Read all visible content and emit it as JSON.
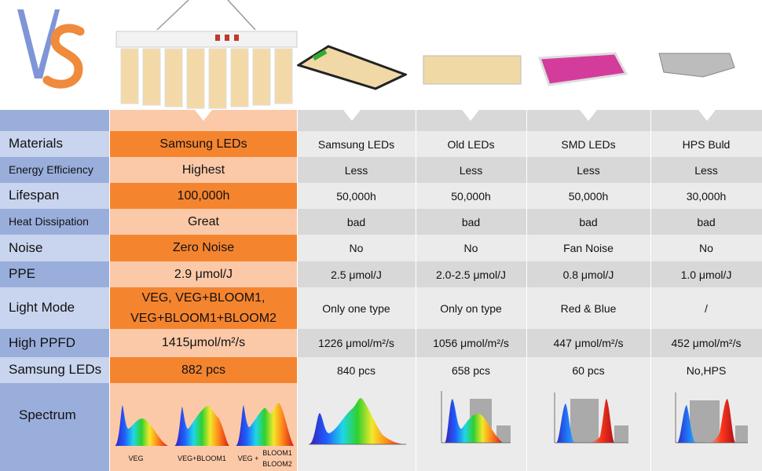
{
  "brand": {
    "logo_letters": "VS"
  },
  "colors": {
    "featured_dark": "#f5842f",
    "featured_light": "#fbc9a8",
    "label_dark": "#9aaedc",
    "label_light": "#c9d5ee",
    "row_light": "#ebebeb",
    "row_dark": "#d8d8d8"
  },
  "rows": [
    {
      "label": "Materials",
      "values": [
        "Samsung LEDs",
        "Samsung LEDs",
        "Old LEDs",
        "SMD LEDs",
        "HPS Buld"
      ]
    },
    {
      "label": "Energy Efficiency",
      "values": [
        "Highest",
        "Less",
        "Less",
        "Less",
        "Less"
      ]
    },
    {
      "label": "Lifespan",
      "values": [
        "100,000h",
        "50,000h",
        "50,000h",
        "50,000h",
        "30,000h"
      ]
    },
    {
      "label": "Heat Dissipation",
      "values": [
        "Great",
        "bad",
        "bad",
        "bad",
        "bad"
      ]
    },
    {
      "label": "Noise",
      "values": [
        "Zero Noise",
        "No",
        "No",
        "Fan Noise",
        "No"
      ]
    },
    {
      "label": "PPE",
      "values": [
        "2.9 μmol/J",
        "2.5  μmol/J",
        "2.0-2.5 μmol/J",
        "0.8 μmol/J",
        "1.0 μmol/J"
      ]
    },
    {
      "label": "Light Mode",
      "values": [
        "VEG, VEG+BLOOM1, VEG+BLOOM1+BLOOM2",
        "Only one type",
        "Only on type",
        "Red & Blue",
        "/"
      ]
    },
    {
      "label": "High PPFD",
      "values": [
        "1415μmol/m²/s",
        "1226 μmol/m²/s",
        "1056 μmol/m²/s",
        "447 μmol/m²/s",
        "452 μmol/m²/s"
      ]
    },
    {
      "label": "Samsung LEDs",
      "values": [
        "882 pcs",
        "840 pcs",
        "658 pcs",
        "60 pcs",
        "No,HPS"
      ]
    }
  ],
  "spectrum": {
    "label": "Spectrum",
    "featured_captions": [
      "VEG",
      "VEG+BLOOM1",
      "VEG +",
      "BLOOM1",
      "BLOOM2"
    ]
  }
}
